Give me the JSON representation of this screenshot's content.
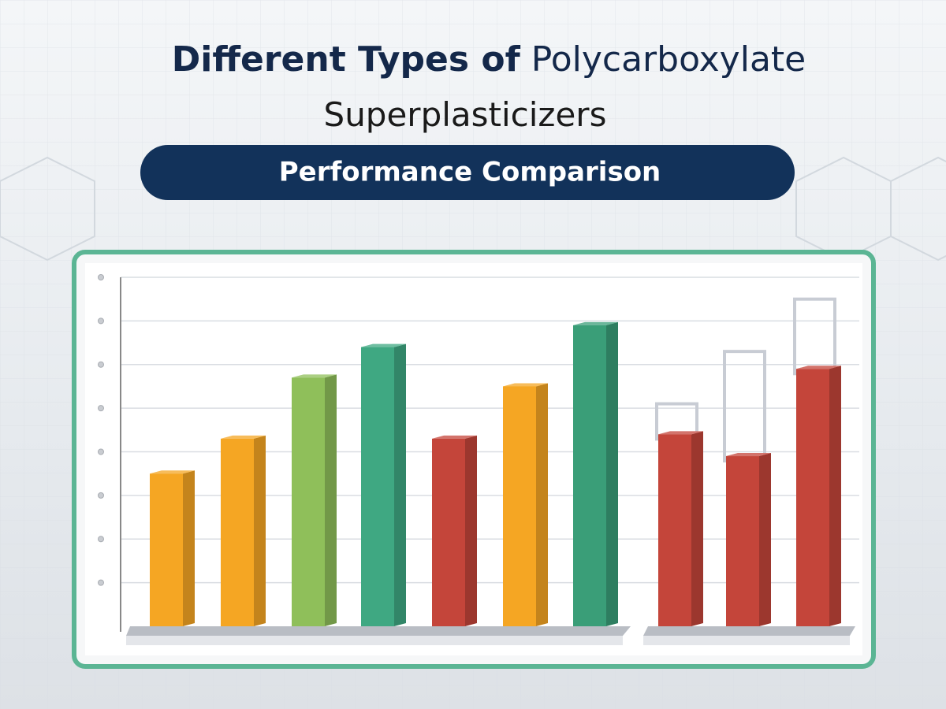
{
  "title_parts": [
    "Different Types of",
    "Polycarboxylate",
    "Superplasticizers"
  ],
  "subtitle": "Performance Comparison",
  "chart_data": {
    "type": "bar",
    "categories": [
      null,
      null,
      null,
      null,
      null,
      null,
      null,
      null,
      null,
      null
    ],
    "values": [
      3.5,
      4.3,
      5.7,
      6.4,
      4.3,
      5.5,
      6.9,
      4.4,
      3.9,
      5.9
    ],
    "outline_values": [
      null,
      null,
      null,
      null,
      null,
      null,
      null,
      5.1,
      6.3,
      7.5
    ],
    "colors": [
      "#f5a623",
      "#f5a623",
      "#8fbf5a",
      "#3fa882",
      "#c4453a",
      "#f5a623",
      "#3a9e78",
      "#c4453a",
      "#c4453a",
      "#c4453a"
    ],
    "ylim": [
      0,
      8
    ],
    "yticks": [
      1,
      2,
      3,
      4,
      5,
      6,
      7,
      8
    ],
    "grid": true
  }
}
